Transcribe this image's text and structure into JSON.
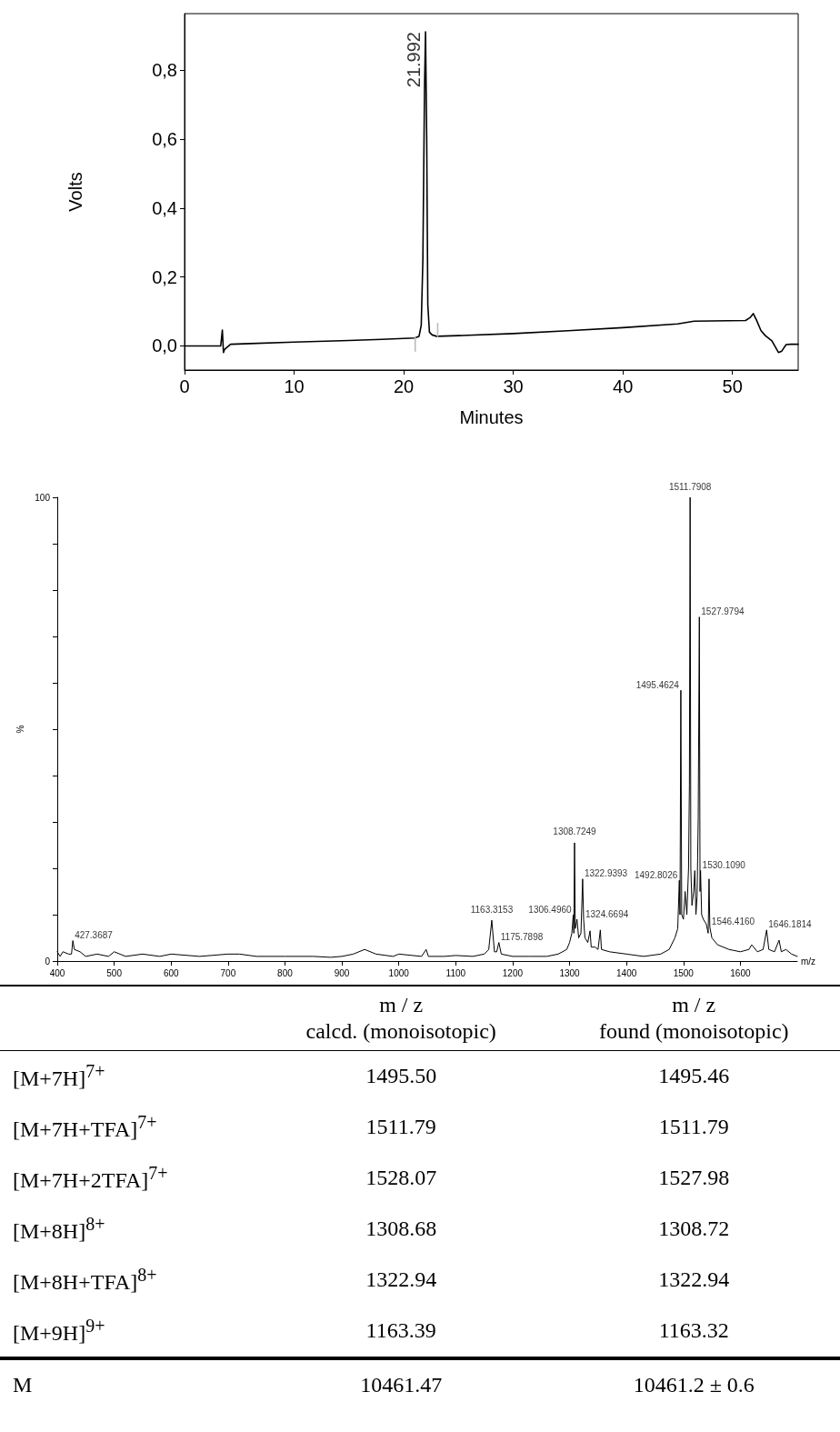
{
  "chart_data": [
    {
      "type": "line",
      "xlabel": "Minutes",
      "ylabel": "Volts",
      "xlim": [
        0,
        56
      ],
      "ylim": [
        -0.07,
        0.965
      ],
      "xticks": [
        0,
        10,
        20,
        30,
        40,
        50
      ],
      "yticks": [
        {
          "value": 0,
          "label": "0,0"
        },
        {
          "value": 0.2,
          "label": "0,2"
        },
        {
          "value": 0.4,
          "label": "0,4"
        },
        {
          "value": 0.6,
          "label": "0,6"
        },
        {
          "value": 0.8,
          "label": "0,8"
        }
      ],
      "marker": "none",
      "line_style": "solid",
      "annotations": [
        {
          "text": "21.992",
          "x": 21.992,
          "y": 0.912
        }
      ],
      "series": [
        {
          "color": "#000000",
          "x": [
            0,
            3.3,
            3.45,
            3.55,
            3.65,
            4.2,
            6,
            10,
            15,
            18,
            21,
            21.4,
            21.6,
            21.75,
            21.9,
            21.992,
            22.1,
            22.2,
            22.35,
            22.6,
            23,
            25,
            30,
            35,
            40,
            45,
            46.5,
            51.2,
            51.6,
            51.9,
            52.2,
            52.6,
            53,
            53.6,
            54.2,
            54.5,
            54.9,
            55.3,
            56
          ],
          "values": [
            0,
            0,
            0.046,
            -0.019,
            -0.01,
            0.005,
            0.007,
            0.011,
            0.016,
            0.019,
            0.023,
            0.028,
            0.06,
            0.25,
            0.75,
            0.912,
            0.6,
            0.12,
            0.04,
            0.032,
            0.028,
            0.03,
            0.036,
            0.044,
            0.053,
            0.064,
            0.072,
            0.074,
            0.082,
            0.094,
            0.075,
            0.045,
            0.03,
            0.015,
            -0.019,
            -0.015,
            0.004,
            0.005,
            0.005
          ]
        },
        {
          "color": "#bbbbbb",
          "x": [
            21.05,
            21.05
          ],
          "values": [
            -0.015,
            0.025
          ]
        },
        {
          "color": "#bbbbbb",
          "x": [
            23.1,
            23.1
          ],
          "values": [
            0.028,
            0.065
          ]
        }
      ]
    },
    {
      "type": "line",
      "xlabel": "m/z",
      "ylabel": "%",
      "xlim": [
        400,
        1700
      ],
      "ylim": [
        0,
        100
      ],
      "xticks": [
        400,
        500,
        600,
        700,
        800,
        900,
        1000,
        1100,
        1200,
        1300,
        1400,
        1500,
        1600
      ],
      "yticks": [
        0,
        {
          "value": 10,
          "label": null
        },
        {
          "value": 20,
          "label": null
        },
        {
          "value": 30,
          "label": null
        },
        {
          "value": 40,
          "label": null
        },
        {
          "value": 50,
          "label": null
        },
        {
          "value": 60,
          "label": null
        },
        {
          "value": 70,
          "label": null
        },
        {
          "value": 80,
          "label": null
        },
        {
          "value": 90,
          "label": null
        },
        100
      ],
      "marker": "none",
      "line_style": "solid",
      "annotations": [
        {
          "text": "427.3687",
          "x": 427.37,
          "y": 4.4
        },
        {
          "text": "1163.3153",
          "x": 1163.32,
          "y": 8.8
        },
        {
          "text": "1175.7898",
          "x": 1175.79,
          "y": 4
        },
        {
          "text": "1306.4960",
          "x": 1306.5,
          "y": 10
        },
        {
          "text": "1308.7249",
          "x": 1308.72,
          "y": 25.5
        },
        {
          "text": "1322.9393",
          "x": 1322.94,
          "y": 17.7
        },
        {
          "text": "1324.6694",
          "x": 1324.67,
          "y": 9
        },
        {
          "text": "1492.8026",
          "x": 1492.8,
          "y": 17.4
        },
        {
          "text": "1495.4624",
          "x": 1495.46,
          "y": 58.4
        },
        {
          "text": "1511.7908",
          "x": 1511.79,
          "y": 100
        },
        {
          "text": "1527.9794",
          "x": 1527.98,
          "y": 74.2
        },
        {
          "text": "1530.1090",
          "x": 1530.11,
          "y": 19.5
        },
        {
          "text": "1546.4160",
          "x": 1546.42,
          "y": 7.3
        },
        {
          "text": "1646.1814",
          "x": 1646.18,
          "y": 6.7
        }
      ],
      "series": [
        {
          "color": "#000000",
          "x": [
            400,
            405,
            410,
            420,
            425,
            427.37,
            430,
            440,
            450,
            470,
            490,
            500,
            520,
            550,
            580,
            600,
            650,
            700,
            720,
            750,
            800,
            850,
            880,
            900,
            920,
            940,
            960,
            990,
            1000,
            1040,
            1048,
            1052,
            1080,
            1100,
            1130,
            1150,
            1158,
            1163.32,
            1168,
            1172,
            1175.79,
            1180,
            1200,
            1230,
            1260,
            1280,
            1295,
            1300,
            1304,
            1306.5,
            1307.5,
            1308.72,
            1310,
            1313,
            1316,
            1320,
            1322.94,
            1324.67,
            1327,
            1332,
            1336,
            1338,
            1345,
            1350,
            1354,
            1356,
            1370,
            1400,
            1430,
            1460,
            1475,
            1485,
            1490,
            1492.8,
            1494,
            1495.46,
            1497,
            1500,
            1503,
            1506,
            1509,
            1510.5,
            1511.79,
            1513,
            1515,
            1518,
            1520,
            1522,
            1524,
            1526,
            1527.98,
            1529.2,
            1530.11,
            1532,
            1535,
            1540,
            1543.5,
            1545,
            1546.42,
            1550,
            1560,
            1580,
            1600,
            1615,
            1620,
            1630,
            1640,
            1646.18,
            1650,
            1660,
            1668,
            1672,
            1680,
            1690,
            1700
          ],
          "values": [
            2,
            1,
            2,
            1.5,
            1.5,
            4.4,
            2.5,
            2,
            1,
            1.5,
            1,
            2,
            1,
            1.5,
            1,
            1.5,
            1,
            1.5,
            1.5,
            1,
            1,
            1,
            0.8,
            1,
            1.5,
            2.5,
            1.5,
            1,
            1.5,
            1,
            2.5,
            1,
            1,
            1.2,
            1,
            1.5,
            2.5,
            8.8,
            2,
            2,
            4,
            1.5,
            1,
            1,
            1,
            1.5,
            2.5,
            4,
            6,
            10,
            6,
            25.5,
            7,
            9,
            5,
            6,
            17.7,
            9,
            5,
            4,
            6.5,
            3,
            3,
            2.5,
            6.7,
            2.5,
            2,
            1.5,
            1,
            1.5,
            2.5,
            5,
            7,
            17.4,
            10,
            58.4,
            10,
            9,
            15,
            10,
            20,
            38,
            100,
            20,
            12,
            15,
            19.5,
            10,
            14,
            31,
            74.2,
            15,
            19.5,
            10,
            9,
            8,
            6,
            17.7,
            7.3,
            5,
            3.5,
            2.5,
            2,
            2.5,
            3.5,
            2,
            2.5,
            6.7,
            2.5,
            2,
            4.5,
            2,
            2.5,
            1.5,
            1
          ]
        }
      ]
    },
    {
      "type": "other",
      "categories": [
        "[M+7H]$^{7+}$",
        "[M+7H+TFA]$^{7+}$",
        "[M+7H+2TFA]$^{7+}$",
        "[M+8H]$^{8+}$",
        "[M+8H+TFA]$^{8+}$",
        "[M+9H]$^{9+}$",
        "M"
      ],
      "annotations": [
        "m / z\ncalcd. (monoisotopic)",
        "m / z\nfound (monoisotopic)",
        "1495.50",
        "1495.46",
        "1511.79",
        "1511.79",
        "1528.07",
        "1527.98",
        "1308.68",
        "1308.72",
        "1322.94",
        "1322.94",
        "1163.39",
        "1163.32",
        "10461.47",
        "10461.2 ± 0.6"
      ]
    }
  ]
}
